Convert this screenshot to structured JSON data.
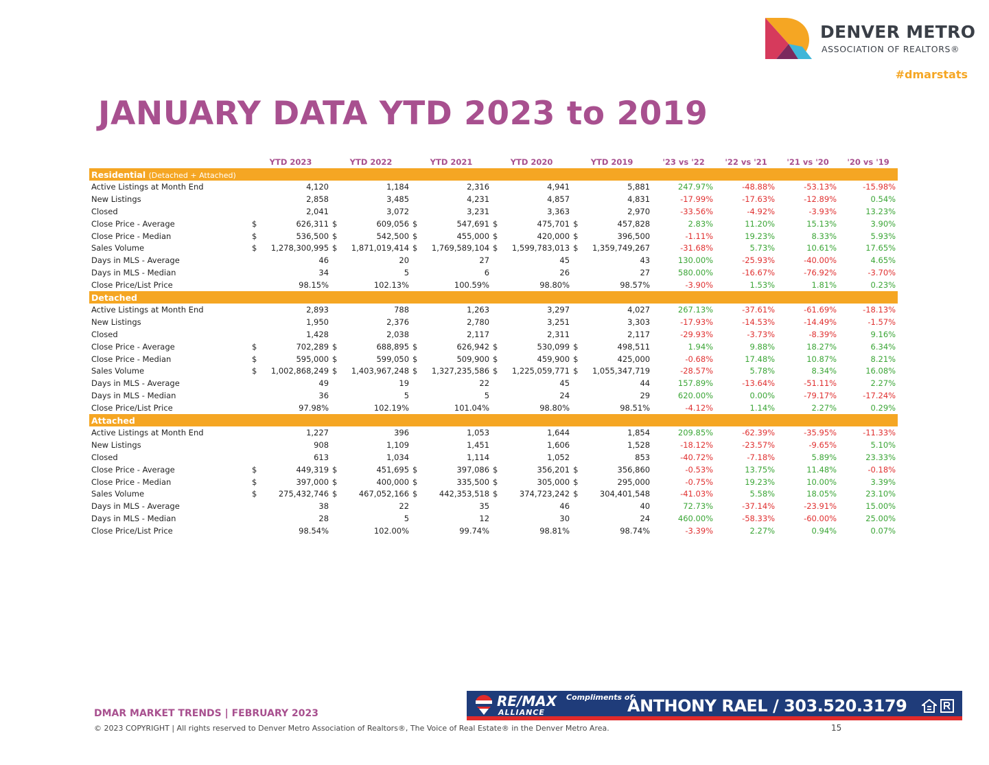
{
  "header": {
    "logo_line1": "DENVER METRO",
    "logo_line2": "ASSOCIATION OF REALTORS®",
    "hashtag": "#dmarstats"
  },
  "title": "JANUARY DATA YTD 2023 to 2019",
  "table": {
    "columns": [
      "YTD 2023",
      "YTD 2022",
      "YTD 2021",
      "YTD 2020",
      "YTD 2019",
      "'23 vs '22",
      "'22 vs '21",
      "'21 vs '20",
      "'20 vs '19"
    ],
    "sections": [
      {
        "name": "Residential",
        "subtitle": "(Detached + Attached)",
        "rows": [
          {
            "label": "Active Listings at Month End",
            "dollar": false,
            "values": [
              "4,120",
              "1,184",
              "2,316",
              "4,941",
              "5,881"
            ],
            "changes": [
              "247.97%",
              "-48.88%",
              "-53.13%",
              "-15.98%"
            ]
          },
          {
            "label": "New Listings",
            "dollar": false,
            "values": [
              "2,858",
              "3,485",
              "4,231",
              "4,857",
              "4,831"
            ],
            "changes": [
              "-17.99%",
              "-17.63%",
              "-12.89%",
              "0.54%"
            ]
          },
          {
            "label": "Closed",
            "dollar": false,
            "values": [
              "2,041",
              "3,072",
              "3,231",
              "3,363",
              "2,970"
            ],
            "changes": [
              "-33.56%",
              "-4.92%",
              "-3.93%",
              "13.23%"
            ]
          },
          {
            "label": "Close Price - Average",
            "dollar": true,
            "values": [
              "626,311",
              "609,056",
              "547,691",
              "475,701",
              "457,828"
            ],
            "changes": [
              "2.83%",
              "11.20%",
              "15.13%",
              "3.90%"
            ]
          },
          {
            "label": "Close Price - Median",
            "dollar": true,
            "values": [
              "536,500",
              "542,500",
              "455,000",
              "420,000",
              "396,500"
            ],
            "changes": [
              "-1.11%",
              "19.23%",
              "8.33%",
              "5.93%"
            ]
          },
          {
            "label": "Sales Volume",
            "dollar": true,
            "values": [
              "1,278,300,995",
              "1,871,019,414",
              "1,769,589,104",
              "1,599,783,013",
              "1,359,749,267"
            ],
            "changes": [
              "-31.68%",
              "5.73%",
              "10.61%",
              "17.65%"
            ]
          },
          {
            "label": "Days in MLS - Average",
            "dollar": false,
            "values": [
              "46",
              "20",
              "27",
              "45",
              "43"
            ],
            "changes": [
              "130.00%",
              "-25.93%",
              "-40.00%",
              "4.65%"
            ]
          },
          {
            "label": "Days in MLS - Median",
            "dollar": false,
            "values": [
              "34",
              "5",
              "6",
              "26",
              "27"
            ],
            "changes": [
              "580.00%",
              "-16.67%",
              "-76.92%",
              "-3.70%"
            ]
          },
          {
            "label": "Close Price/List Price",
            "dollar": false,
            "values": [
              "98.15%",
              "102.13%",
              "100.59%",
              "98.80%",
              "98.57%"
            ],
            "changes": [
              "-3.90%",
              "1.53%",
              "1.81%",
              "0.23%"
            ]
          }
        ]
      },
      {
        "name": "Detached",
        "subtitle": "",
        "rows": [
          {
            "label": "Active Listings at Month End",
            "dollar": false,
            "values": [
              "2,893",
              "788",
              "1,263",
              "3,297",
              "4,027"
            ],
            "changes": [
              "267.13%",
              "-37.61%",
              "-61.69%",
              "-18.13%"
            ]
          },
          {
            "label": "New Listings",
            "dollar": false,
            "values": [
              "1,950",
              "2,376",
              "2,780",
              "3,251",
              "3,303"
            ],
            "changes": [
              "-17.93%",
              "-14.53%",
              "-14.49%",
              "-1.57%"
            ]
          },
          {
            "label": "Closed",
            "dollar": false,
            "values": [
              "1,428",
              "2,038",
              "2,117",
              "2,311",
              "2,117"
            ],
            "changes": [
              "-29.93%",
              "-3.73%",
              "-8.39%",
              "9.16%"
            ]
          },
          {
            "label": "Close Price - Average",
            "dollar": true,
            "values": [
              "702,289",
              "688,895",
              "626,942",
              "530,099",
              "498,511"
            ],
            "changes": [
              "1.94%",
              "9.88%",
              "18.27%",
              "6.34%"
            ]
          },
          {
            "label": "Close Price - Median",
            "dollar": true,
            "values": [
              "595,000",
              "599,050",
              "509,900",
              "459,900",
              "425,000"
            ],
            "changes": [
              "-0.68%",
              "17.48%",
              "10.87%",
              "8.21%"
            ]
          },
          {
            "label": "Sales Volume",
            "dollar": true,
            "values": [
              "1,002,868,249",
              "1,403,967,248",
              "1,327,235,586",
              "1,225,059,771",
              "1,055,347,719"
            ],
            "changes": [
              "-28.57%",
              "5.78%",
              "8.34%",
              "16.08%"
            ]
          },
          {
            "label": "Days in MLS - Average",
            "dollar": false,
            "values": [
              "49",
              "19",
              "22",
              "45",
              "44"
            ],
            "changes": [
              "157.89%",
              "-13.64%",
              "-51.11%",
              "2.27%"
            ]
          },
          {
            "label": "Days in MLS - Median",
            "dollar": false,
            "values": [
              "36",
              "5",
              "5",
              "24",
              "29"
            ],
            "changes": [
              "620.00%",
              "0.00%",
              "-79.17%",
              "-17.24%"
            ]
          },
          {
            "label": "Close Price/List Price",
            "dollar": false,
            "values": [
              "97.98%",
              "102.19%",
              "101.04%",
              "98.80%",
              "98.51%"
            ],
            "changes": [
              "-4.12%",
              "1.14%",
              "2.27%",
              "0.29%"
            ]
          }
        ]
      },
      {
        "name": "Attached",
        "subtitle": "",
        "rows": [
          {
            "label": "Active Listings at Month End",
            "dollar": false,
            "values": [
              "1,227",
              "396",
              "1,053",
              "1,644",
              "1,854"
            ],
            "changes": [
              "209.85%",
              "-62.39%",
              "-35.95%",
              "-11.33%"
            ]
          },
          {
            "label": "New Listings",
            "dollar": false,
            "values": [
              "908",
              "1,109",
              "1,451",
              "1,606",
              "1,528"
            ],
            "changes": [
              "-18.12%",
              "-23.57%",
              "-9.65%",
              "5.10%"
            ]
          },
          {
            "label": "Closed",
            "dollar": false,
            "values": [
              "613",
              "1,034",
              "1,114",
              "1,052",
              "853"
            ],
            "changes": [
              "-40.72%",
              "-7.18%",
              "5.89%",
              "23.33%"
            ]
          },
          {
            "label": "Close Price - Average",
            "dollar": true,
            "values": [
              "449,319",
              "451,695",
              "397,086",
              "356,201",
              "356,860"
            ],
            "changes": [
              "-0.53%",
              "13.75%",
              "11.48%",
              "-0.18%"
            ]
          },
          {
            "label": "Close Price - Median",
            "dollar": true,
            "values": [
              "397,000",
              "400,000",
              "335,500",
              "305,000",
              "295,000"
            ],
            "changes": [
              "-0.75%",
              "19.23%",
              "10.00%",
              "3.39%"
            ]
          },
          {
            "label": "Sales Volume",
            "dollar": true,
            "values": [
              "275,432,746",
              "467,052,166",
              "442,353,518",
              "374,723,242",
              "304,401,548"
            ],
            "changes": [
              "-41.03%",
              "5.58%",
              "18.05%",
              "23.10%"
            ]
          },
          {
            "label": "Days in MLS - Average",
            "dollar": false,
            "values": [
              "38",
              "22",
              "35",
              "46",
              "40"
            ],
            "changes": [
              "72.73%",
              "-37.14%",
              "-23.91%",
              "15.00%"
            ]
          },
          {
            "label": "Days in MLS - Median",
            "dollar": false,
            "values": [
              "28",
              "5",
              "12",
              "30",
              "24"
            ],
            "changes": [
              "460.00%",
              "-58.33%",
              "-60.00%",
              "25.00%"
            ]
          },
          {
            "label": "Close Price/List Price",
            "dollar": false,
            "values": [
              "98.54%",
              "102.00%",
              "99.74%",
              "98.81%",
              "98.74%"
            ],
            "changes": [
              "-3.39%",
              "2.27%",
              "0.94%",
              "0.07%"
            ]
          }
        ]
      }
    ]
  },
  "banner": {
    "brand": "RE/MAX",
    "brand_sub": "ALLIANCE",
    "compliments": "Compliments of:",
    "agent": "ANTHONY RAEL / 303.520.3179"
  },
  "footer": {
    "title": "DMAR MARKET TRENDS | FEBRUARY 2023",
    "copyright": "© 2023 COPYRIGHT | All rights reserved to Denver Metro Association of Realtors®, The Voice of Real Estate® in the Denver Metro Area.",
    "page": "15"
  },
  "colors": {
    "accent_purple": "#a8508f",
    "section_orange": "#f5a623",
    "positive_green": "#3aa535",
    "negative_red": "#e03030",
    "banner_blue": "#1f3c7a"
  }
}
